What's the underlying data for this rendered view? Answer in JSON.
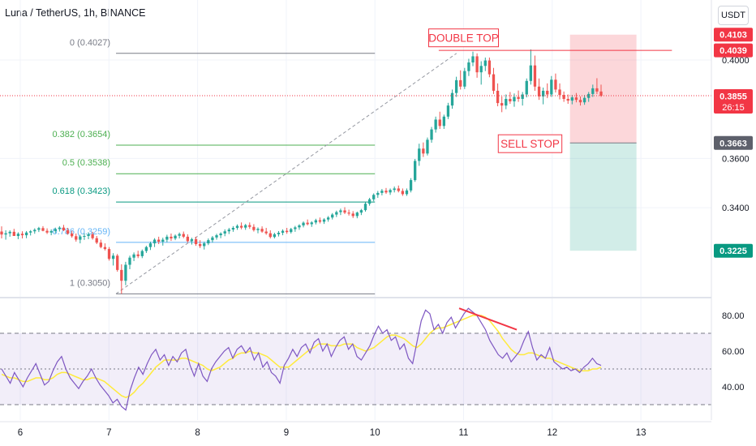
{
  "header": {
    "title": "Luna / TetherUS, 1h, BINANCE",
    "currency_button": "USDT"
  },
  "colors": {
    "up": "#26a69a",
    "down": "#ef5350",
    "fib_0": "#787b86",
    "fib_382": "#4caf50",
    "fib_5": "#4caf50",
    "fib_618": "#089981",
    "fib_786": "#64b5f6",
    "fib_1": "#787b86",
    "rsi": "#7e57c2",
    "rsi_ma": "#ffeb3b",
    "annotation": "#f23645"
  },
  "chart_data": [
    {
      "type": "candlestick",
      "price_axis_ticks": [
        "0.4000",
        "0.3600",
        "0.3400"
      ],
      "time_axis_ticks": [
        "6",
        "7",
        "8",
        "9",
        "10",
        "11",
        "12",
        "13"
      ],
      "ylim": [
        0.295,
        0.418
      ],
      "xlim": [
        5.8,
        13.35
      ],
      "fib_levels": [
        {
          "label": "0 (0.4027)",
          "value": 0.4027
        },
        {
          "label": "0.382 (0.3654)",
          "value": 0.3654
        },
        {
          "label": "0.5 (0.3538)",
          "value": 0.3538
        },
        {
          "label": "0.618 (0.3423)",
          "value": 0.3423
        },
        {
          "label": "0.786 (0.3259)",
          "value": 0.3259
        },
        {
          "label": "1 (0.3050)",
          "value": 0.305
        }
      ],
      "price_labels": [
        {
          "text": "0.4103",
          "value": 0.4103,
          "style": "red"
        },
        {
          "text": "0.4039",
          "value": 0.4039,
          "style": "red"
        },
        {
          "text": "0.3855",
          "subtext": "26:15",
          "value": 0.3855,
          "style": "red"
        },
        {
          "text": "0.3663",
          "value": 0.3663,
          "style": "gray"
        },
        {
          "text": "0.3225",
          "value": 0.3225,
          "style": "green"
        }
      ],
      "annotations": [
        {
          "text": "DOUBLE TOP",
          "x": 11.0,
          "y": 0.409
        },
        {
          "text": "SELL STOP",
          "x": 11.75,
          "y": 0.366
        }
      ],
      "resistance_line": {
        "x_start": 10.72,
        "x_end": 13.35,
        "y": 0.4039
      },
      "position": {
        "x_start": 12.2,
        "x_end": 12.95,
        "entry": 0.3663,
        "stop": 0.4103,
        "target": 0.3225
      },
      "current_price": 0.3855,
      "candles_ohlc": [
        [
          0.3303,
          0.3324,
          0.3275,
          0.3291
        ],
        [
          0.3291,
          0.3308,
          0.327,
          0.3296
        ],
        [
          0.3296,
          0.3308,
          0.3282,
          0.3302
        ],
        [
          0.3302,
          0.3314,
          0.329,
          0.3285
        ],
        [
          0.3285,
          0.33,
          0.3272,
          0.3294
        ],
        [
          0.3294,
          0.3304,
          0.3275,
          0.3288
        ],
        [
          0.3288,
          0.3305,
          0.3276,
          0.3299
        ],
        [
          0.3299,
          0.3309,
          0.3287,
          0.3304
        ],
        [
          0.3304,
          0.3316,
          0.3294,
          0.331
        ],
        [
          0.331,
          0.3322,
          0.3301,
          0.3317
        ],
        [
          0.3317,
          0.3325,
          0.3304,
          0.3306
        ],
        [
          0.3306,
          0.3316,
          0.3293,
          0.3299
        ],
        [
          0.3299,
          0.3312,
          0.3288,
          0.3305
        ],
        [
          0.3305,
          0.3319,
          0.3296,
          0.3313
        ],
        [
          0.3313,
          0.3325,
          0.3303,
          0.3319
        ],
        [
          0.3319,
          0.333,
          0.3305,
          0.3308
        ],
        [
          0.3308,
          0.3318,
          0.329,
          0.3295
        ],
        [
          0.3295,
          0.3306,
          0.3278,
          0.3284
        ],
        [
          0.3284,
          0.3295,
          0.3262,
          0.327
        ],
        [
          0.327,
          0.329,
          0.3255,
          0.3283
        ],
        [
          0.3283,
          0.3296,
          0.3269,
          0.3285
        ],
        [
          0.3285,
          0.33,
          0.3272,
          0.3292
        ],
        [
          0.3292,
          0.3302,
          0.327,
          0.3276
        ],
        [
          0.3276,
          0.3285,
          0.3252,
          0.3258
        ],
        [
          0.3258,
          0.327,
          0.3235,
          0.324
        ],
        [
          0.324,
          0.3255,
          0.3226,
          0.3232
        ],
        [
          0.3232,
          0.324,
          0.3185,
          0.3192
        ],
        [
          0.3192,
          0.3215,
          0.3165,
          0.3205
        ],
        [
          0.3205,
          0.3212,
          0.314,
          0.3147
        ],
        [
          0.3147,
          0.317,
          0.305,
          0.3103
        ],
        [
          0.3103,
          0.318,
          0.3085,
          0.3168
        ],
        [
          0.3168,
          0.3205,
          0.315,
          0.3197
        ],
        [
          0.3197,
          0.3218,
          0.3183,
          0.321
        ],
        [
          0.321,
          0.3225,
          0.3195,
          0.3203
        ],
        [
          0.3203,
          0.323,
          0.3195,
          0.3224
        ],
        [
          0.3224,
          0.3245,
          0.3216,
          0.324
        ],
        [
          0.324,
          0.3262,
          0.3228,
          0.3255
        ],
        [
          0.3255,
          0.3276,
          0.324,
          0.327
        ],
        [
          0.327,
          0.3282,
          0.3252,
          0.3262
        ],
        [
          0.3262,
          0.3278,
          0.3246,
          0.327
        ],
        [
          0.327,
          0.329,
          0.326,
          0.3282
        ],
        [
          0.3282,
          0.3295,
          0.3265,
          0.3275
        ],
        [
          0.3275,
          0.3291,
          0.3268,
          0.3286
        ],
        [
          0.3286,
          0.3299,
          0.3275,
          0.3293
        ],
        [
          0.3293,
          0.3303,
          0.3276,
          0.3282
        ],
        [
          0.3282,
          0.3292,
          0.3258,
          0.3264
        ],
        [
          0.3264,
          0.3278,
          0.325,
          0.3272
        ],
        [
          0.3272,
          0.3282,
          0.3245,
          0.3252
        ],
        [
          0.3252,
          0.3268,
          0.3236,
          0.3244
        ],
        [
          0.3244,
          0.3262,
          0.323,
          0.3255
        ],
        [
          0.3255,
          0.3275,
          0.3248,
          0.3268
        ],
        [
          0.3268,
          0.3285,
          0.3258,
          0.3279
        ],
        [
          0.3279,
          0.3294,
          0.327,
          0.3288
        ],
        [
          0.3288,
          0.33,
          0.3276,
          0.3295
        ],
        [
          0.3295,
          0.3312,
          0.3284,
          0.3304
        ],
        [
          0.3304,
          0.3318,
          0.3293,
          0.3311
        ],
        [
          0.3311,
          0.3325,
          0.3302,
          0.3318
        ],
        [
          0.3318,
          0.3332,
          0.331,
          0.3326
        ],
        [
          0.3326,
          0.334,
          0.3312,
          0.3319
        ],
        [
          0.3319,
          0.3334,
          0.331,
          0.3329
        ],
        [
          0.3329,
          0.334,
          0.3314,
          0.3322
        ],
        [
          0.3322,
          0.3333,
          0.3303,
          0.3309
        ],
        [
          0.3309,
          0.332,
          0.3296,
          0.3314
        ],
        [
          0.3314,
          0.3324,
          0.3298,
          0.3303
        ],
        [
          0.3303,
          0.3318,
          0.329,
          0.3296
        ],
        [
          0.3296,
          0.3308,
          0.3275,
          0.3281
        ],
        [
          0.3281,
          0.3298,
          0.3275,
          0.3292
        ],
        [
          0.3292,
          0.3305,
          0.3283,
          0.3298
        ],
        [
          0.3298,
          0.3312,
          0.3288,
          0.3306
        ],
        [
          0.3306,
          0.3318,
          0.3294,
          0.3301
        ],
        [
          0.3301,
          0.3318,
          0.3295,
          0.3313
        ],
        [
          0.3313,
          0.3326,
          0.3302,
          0.332
        ],
        [
          0.332,
          0.3333,
          0.331,
          0.3328
        ],
        [
          0.3328,
          0.3344,
          0.332,
          0.3339
        ],
        [
          0.3339,
          0.3352,
          0.3328,
          0.3333
        ],
        [
          0.3333,
          0.3345,
          0.3322,
          0.334
        ],
        [
          0.334,
          0.3355,
          0.3332,
          0.3349
        ],
        [
          0.3349,
          0.336,
          0.3336,
          0.3343
        ],
        [
          0.3343,
          0.3357,
          0.3334,
          0.3352
        ],
        [
          0.3352,
          0.3366,
          0.3343,
          0.336
        ],
        [
          0.336,
          0.3378,
          0.3352,
          0.3372
        ],
        [
          0.3372,
          0.3388,
          0.3362,
          0.3382
        ],
        [
          0.3382,
          0.3396,
          0.337,
          0.3389
        ],
        [
          0.3389,
          0.3402,
          0.3374,
          0.338
        ],
        [
          0.338,
          0.3392,
          0.3368,
          0.3376
        ],
        [
          0.3376,
          0.3386,
          0.3358,
          0.3366
        ],
        [
          0.3366,
          0.3384,
          0.3357,
          0.338
        ],
        [
          0.338,
          0.3395,
          0.337,
          0.339
        ],
        [
          0.339,
          0.3422,
          0.3384,
          0.3416
        ],
        [
          0.3416,
          0.344,
          0.3408,
          0.3434
        ],
        [
          0.3434,
          0.3458,
          0.3426,
          0.3452
        ],
        [
          0.3452,
          0.3468,
          0.344,
          0.346
        ],
        [
          0.346,
          0.3476,
          0.345,
          0.3469
        ],
        [
          0.3469,
          0.348,
          0.3456,
          0.3462
        ],
        [
          0.3462,
          0.3478,
          0.3452,
          0.3472
        ],
        [
          0.3472,
          0.3486,
          0.3462,
          0.3478
        ],
        [
          0.3478,
          0.349,
          0.3462,
          0.3468
        ],
        [
          0.3468,
          0.3478,
          0.3448,
          0.3455
        ],
        [
          0.3455,
          0.3478,
          0.3448,
          0.347
        ],
        [
          0.347,
          0.352,
          0.3462,
          0.3512
        ],
        [
          0.3512,
          0.3598,
          0.3505,
          0.359
        ],
        [
          0.359,
          0.366,
          0.357,
          0.364
        ],
        [
          0.364,
          0.3665,
          0.3606,
          0.362
        ],
        [
          0.362,
          0.3685,
          0.3612,
          0.3676
        ],
        [
          0.3676,
          0.3728,
          0.3664,
          0.3718
        ],
        [
          0.3718,
          0.377,
          0.3705,
          0.3758
        ],
        [
          0.3758,
          0.379,
          0.372,
          0.3732
        ],
        [
          0.3732,
          0.3778,
          0.372,
          0.377
        ],
        [
          0.377,
          0.3826,
          0.376,
          0.3815
        ],
        [
          0.3815,
          0.388,
          0.3802,
          0.3866
        ],
        [
          0.3866,
          0.3932,
          0.385,
          0.3918
        ],
        [
          0.3918,
          0.3958,
          0.388,
          0.3892
        ],
        [
          0.3892,
          0.3968,
          0.3882,
          0.3955
        ],
        [
          0.3955,
          0.4005,
          0.3935,
          0.399
        ],
        [
          0.399,
          0.4034,
          0.3975,
          0.4015
        ],
        [
          0.4015,
          0.4027,
          0.3928,
          0.395
        ],
        [
          0.395,
          0.3995,
          0.39,
          0.3976
        ],
        [
          0.3976,
          0.401,
          0.3955,
          0.3998
        ],
        [
          0.3998,
          0.401,
          0.393,
          0.3942
        ],
        [
          0.3942,
          0.3968,
          0.3862,
          0.3875
        ],
        [
          0.3875,
          0.3905,
          0.3812,
          0.3825
        ],
        [
          0.3825,
          0.3852,
          0.3788,
          0.3815
        ],
        [
          0.3815,
          0.386,
          0.38,
          0.3842
        ],
        [
          0.3842,
          0.387,
          0.3822,
          0.3832
        ],
        [
          0.3832,
          0.3864,
          0.381,
          0.385
        ],
        [
          0.385,
          0.3876,
          0.383,
          0.3842
        ],
        [
          0.3842,
          0.387,
          0.3815,
          0.386
        ],
        [
          0.386,
          0.3925,
          0.3848,
          0.3915
        ],
        [
          0.3915,
          0.4043,
          0.39,
          0.3978
        ],
        [
          0.3978,
          0.4018,
          0.3875,
          0.3892
        ],
        [
          0.3892,
          0.3925,
          0.3838,
          0.3852
        ],
        [
          0.3852,
          0.3888,
          0.382,
          0.3875
        ],
        [
          0.3875,
          0.3905,
          0.3845,
          0.386
        ],
        [
          0.386,
          0.3935,
          0.385,
          0.392
        ],
        [
          0.392,
          0.3945,
          0.3868,
          0.388
        ],
        [
          0.388,
          0.3905,
          0.384,
          0.3858
        ],
        [
          0.3858,
          0.3872,
          0.383,
          0.3842
        ],
        [
          0.3842,
          0.386,
          0.3822,
          0.3835
        ],
        [
          0.3835,
          0.3858,
          0.382,
          0.3848
        ],
        [
          0.3848,
          0.3866,
          0.3828,
          0.3838
        ],
        [
          0.3838,
          0.3852,
          0.3815,
          0.3828
        ],
        [
          0.3828,
          0.3858,
          0.3818,
          0.3846
        ],
        [
          0.3846,
          0.387,
          0.383,
          0.3862
        ],
        [
          0.3862,
          0.39,
          0.385,
          0.3885
        ],
        [
          0.3885,
          0.3926,
          0.3862,
          0.3872
        ],
        [
          0.3872,
          0.39,
          0.385,
          0.3855
        ]
      ]
    },
    {
      "type": "line",
      "name": "RSI",
      "ylim": [
        20,
        87
      ],
      "y_axis_ticks": [
        "80.00",
        "60.00",
        "40.00"
      ],
      "bands": [
        70,
        50,
        30
      ],
      "divergence_line": {
        "x": [
          10.95,
          11.6
        ],
        "y": [
          84,
          72
        ]
      },
      "rsi_values": [
        50,
        46,
        42,
        48,
        44,
        40,
        45,
        49,
        53,
        47,
        41,
        43,
        49,
        54,
        57,
        50,
        45,
        42,
        39,
        43,
        46,
        50,
        45,
        41,
        38,
        35,
        31,
        33,
        29,
        27,
        38,
        45,
        51,
        47,
        53,
        58,
        61,
        55,
        58,
        52,
        57,
        54,
        59,
        61,
        52,
        46,
        53,
        46,
        43,
        50,
        54,
        57,
        60,
        62,
        56,
        61,
        63,
        59,
        62,
        55,
        59,
        51,
        54,
        48,
        46,
        42,
        52,
        56,
        61,
        57,
        62,
        64,
        59,
        65,
        67,
        60,
        64,
        57,
        62,
        66,
        68,
        61,
        64,
        57,
        55,
        59,
        63,
        69,
        74,
        70,
        72,
        66,
        68,
        61,
        64,
        56,
        53,
        65,
        77,
        83,
        81,
        72,
        75,
        70,
        76,
        79,
        73,
        77,
        81,
        84,
        82,
        80,
        76,
        72,
        66,
        62,
        58,
        56,
        59,
        54,
        57,
        60,
        66,
        71,
        62,
        55,
        58,
        56,
        62,
        54,
        52,
        50,
        51,
        49,
        50,
        48,
        51,
        53,
        56,
        53,
        52
      ],
      "rsi_ma_values": [
        47,
        46,
        45,
        45,
        44,
        43,
        43,
        44,
        45,
        45,
        44,
        44,
        45,
        47,
        48,
        48,
        47,
        46,
        45,
        44,
        44,
        45,
        45,
        44,
        43,
        41,
        39,
        37,
        35,
        34,
        35,
        37,
        40,
        42,
        45,
        48,
        51,
        53,
        55,
        55,
        55,
        55,
        56,
        56,
        55,
        54,
        53,
        52,
        50,
        49,
        50,
        51,
        53,
        55,
        56,
        58,
        59,
        59,
        60,
        59,
        59,
        58,
        57,
        55,
        53,
        51,
        51,
        51,
        53,
        55,
        57,
        59,
        61,
        62,
        64,
        64,
        64,
        63,
        63,
        63,
        64,
        64,
        64,
        62,
        61,
        60,
        61,
        62,
        64,
        66,
        68,
        69,
        69,
        68,
        67,
        65,
        63,
        62,
        64,
        67,
        70,
        72,
        73,
        73,
        74,
        75,
        76,
        77,
        78,
        79,
        80,
        80,
        80,
        79,
        77,
        74,
        71,
        67,
        64,
        61,
        59,
        58,
        58,
        59,
        59,
        58,
        57,
        56,
        56,
        55,
        54,
        53,
        52,
        51,
        50,
        49,
        49,
        49,
        50,
        50,
        51
      ]
    }
  ]
}
